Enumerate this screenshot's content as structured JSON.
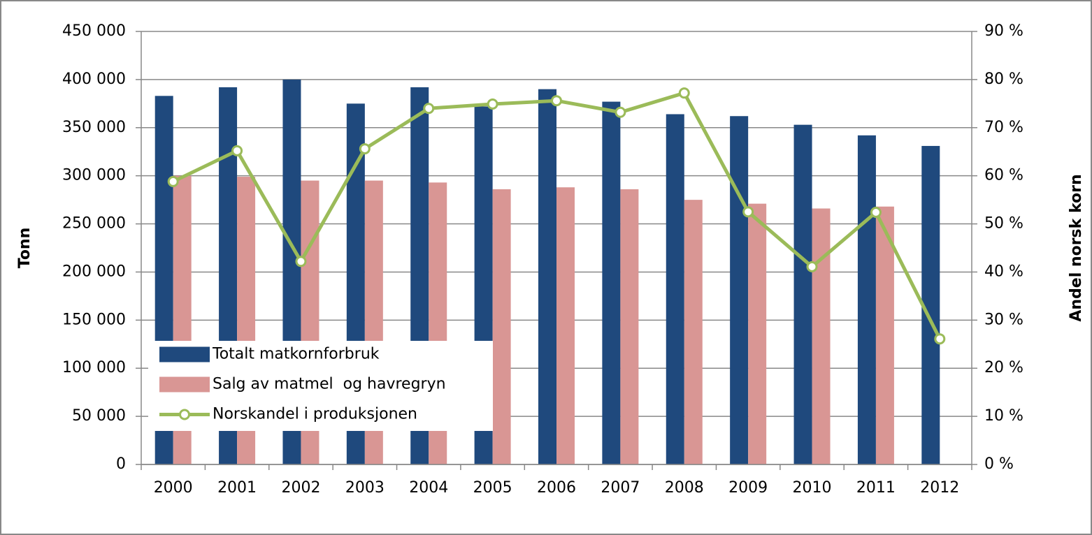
{
  "chart_data": {
    "type": "bar_line",
    "categories": [
      "2000",
      "2001",
      "2002",
      "2003",
      "2004",
      "2005",
      "2006",
      "2007",
      "2008",
      "2009",
      "2010",
      "2011",
      "2012"
    ],
    "series": [
      {
        "name": "Totalt matkornforbruk",
        "type": "bar",
        "color": "#1f497d",
        "values": [
          383000,
          392000,
          400000,
          375000,
          392000,
          372000,
          390000,
          377000,
          364000,
          362000,
          353000,
          342000,
          331000
        ]
      },
      {
        "name": "Salg av matmel  og havregryn",
        "type": "bar",
        "color": "#d99694",
        "values": [
          300000,
          299000,
          295000,
          295000,
          293000,
          286000,
          288000,
          286000,
          275000,
          271000,
          266000,
          268000,
          null
        ]
      },
      {
        "name": "Norskandel i produksjonen",
        "type": "line",
        "axis": "y2",
        "color": "#9bbb59",
        "values": [
          58.8,
          65.2,
          42.2,
          65.6,
          74.0,
          74.9,
          75.6,
          73.2,
          77.2,
          52.5,
          41.1,
          52.4,
          26.1
        ]
      }
    ],
    "ylabel": "Tonn",
    "y2label": "Andel norsk korn",
    "ylim": [
      0,
      450000
    ],
    "yticks": [
      0,
      {
        "value": 50000,
        "label": "50 000"
      },
      {
        "value": 100000,
        "label": "100 000"
      },
      {
        "value": 150000,
        "label": "150 000"
      },
      {
        "value": 200000,
        "label": "200 000"
      },
      {
        "value": 250000,
        "label": "250 000"
      },
      {
        "value": 300000,
        "label": "300 000"
      },
      {
        "value": 350000,
        "label": "350 000"
      },
      {
        "value": 400000,
        "label": "400 000"
      },
      {
        "value": 450000,
        "label": "450 000"
      }
    ],
    "y2lim": [
      0,
      90
    ],
    "y2ticks": [
      {
        "value": 0,
        "label": "0 %"
      },
      {
        "value": 10,
        "label": "10 %"
      },
      {
        "value": 20,
        "label": "20 %"
      },
      {
        "value": 30,
        "label": "30 %"
      },
      {
        "value": 40,
        "label": "40 %"
      },
      {
        "value": 50,
        "label": "50 %"
      },
      {
        "value": 60,
        "label": "60 %"
      },
      {
        "value": 70,
        "label": "70 %"
      },
      {
        "value": 80,
        "label": "80 %"
      },
      {
        "value": 90,
        "label": "90 %"
      }
    ],
    "grid": true,
    "legend": "lower left"
  }
}
